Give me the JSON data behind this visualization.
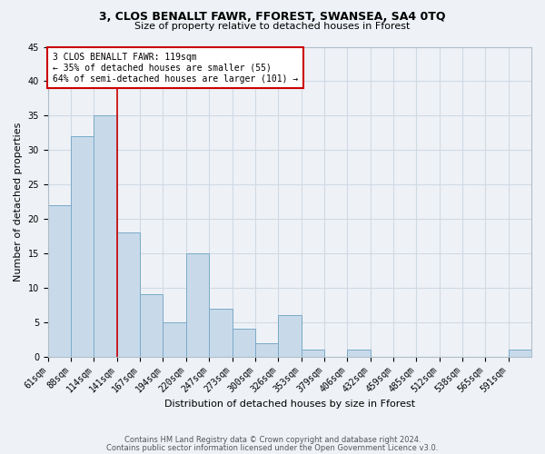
{
  "title": "3, CLOS BENALLT FAWR, FFOREST, SWANSEA, SA4 0TQ",
  "subtitle": "Size of property relative to detached houses in Fforest",
  "xlabel": "Distribution of detached houses by size in Fforest",
  "ylabel": "Number of detached properties",
  "footer_line1": "Contains HM Land Registry data © Crown copyright and database right 2024.",
  "footer_line2": "Contains public sector information licensed under the Open Government Licence v3.0.",
  "bin_labels": [
    "61sqm",
    "88sqm",
    "114sqm",
    "141sqm",
    "167sqm",
    "194sqm",
    "220sqm",
    "247sqm",
    "273sqm",
    "300sqm",
    "326sqm",
    "353sqm",
    "379sqm",
    "406sqm",
    "432sqm",
    "459sqm",
    "485sqm",
    "512sqm",
    "538sqm",
    "565sqm",
    "591sqm"
  ],
  "bar_values": [
    22,
    32,
    35,
    18,
    9,
    5,
    15,
    7,
    4,
    2,
    6,
    1,
    0,
    1,
    0,
    0,
    0,
    0,
    0,
    0,
    1
  ],
  "bar_color": "#c8daea",
  "bar_edge_color": "#7aaac8",
  "vline_color": "#cc0000",
  "vline_bin_index": 2,
  "ylim": [
    0,
    45
  ],
  "annotation_text": "3 CLOS BENALLT FAWR: 119sqm\n← 35% of detached houses are smaller (55)\n64% of semi-detached houses are larger (101) →",
  "annotation_box_edgecolor": "#cc0000",
  "annotation_box_facecolor": "#ffffff",
  "grid_color": "#d0dae4",
  "background_color": "#eef2f7",
  "title_fontsize": 9,
  "subtitle_fontsize": 8,
  "xlabel_fontsize": 8,
  "ylabel_fontsize": 8,
  "tick_fontsize": 7,
  "annotation_fontsize": 7,
  "footer_fontsize": 6
}
